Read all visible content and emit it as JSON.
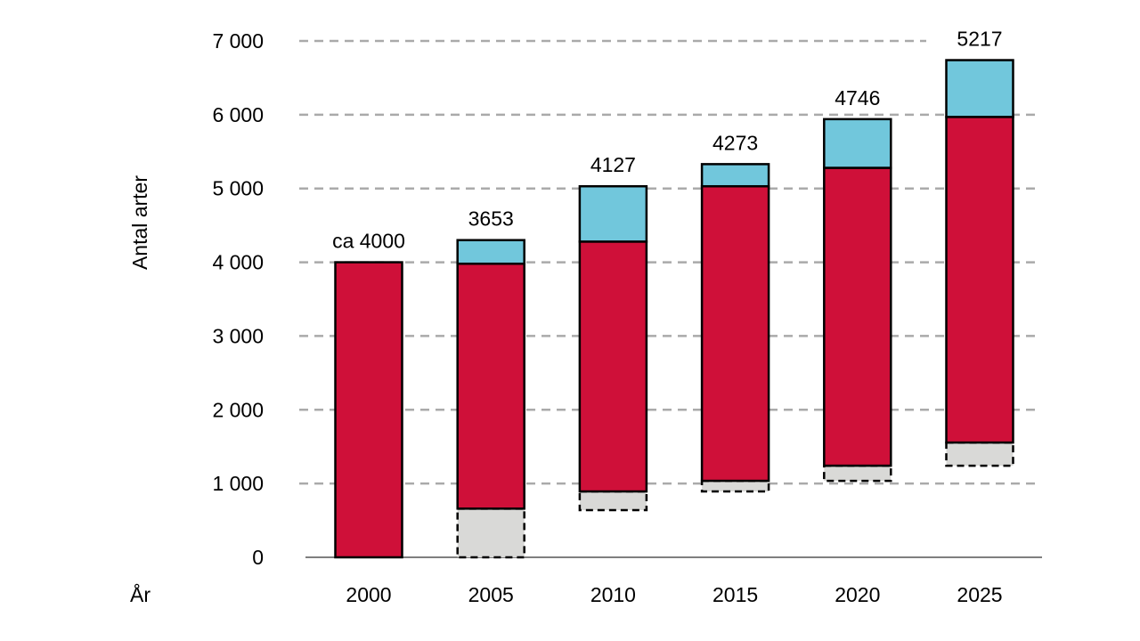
{
  "chart_data": {
    "type": "bar",
    "stacked": true,
    "ylabel": "Antal arter",
    "xlabel": "År",
    "ylim": [
      0,
      7000
    ],
    "yticks": [
      0,
      1000,
      2000,
      3000,
      4000,
      5000,
      6000,
      7000
    ],
    "ytick_labels": [
      "0",
      "1 000",
      "2 000",
      "3 000",
      "4 000",
      "5 000",
      "6 000",
      "7 000"
    ],
    "grid": "horizontal dashed",
    "categories": [
      "2000",
      "2005",
      "2010",
      "2015",
      "2020",
      "2025"
    ],
    "data_labels": [
      "ca 4000",
      "3653",
      "4127",
      "4273",
      "4746",
      "5217"
    ],
    "segments": [
      {
        "color": "#d9d9d7",
        "dashed": true,
        "ranges": [
          null,
          [
            0,
            660
          ],
          [
            640,
            893
          ],
          [
            893,
            1037
          ],
          [
            1037,
            1242
          ],
          [
            1242,
            1556
          ]
        ]
      },
      {
        "color": "#cf1039",
        "dashed": false,
        "ranges": [
          [
            0,
            4000
          ],
          [
            660,
            3980
          ],
          [
            893,
            4280
          ],
          [
            1037,
            5030
          ],
          [
            1242,
            5280
          ],
          [
            1556,
            5970
          ]
        ]
      },
      {
        "color": "#71c7dc",
        "dashed": false,
        "ranges": [
          null,
          [
            3980,
            4300
          ],
          [
            4280,
            5030
          ],
          [
            5030,
            5330
          ],
          [
            5280,
            5940
          ],
          [
            5970,
            6740
          ]
        ]
      }
    ]
  }
}
